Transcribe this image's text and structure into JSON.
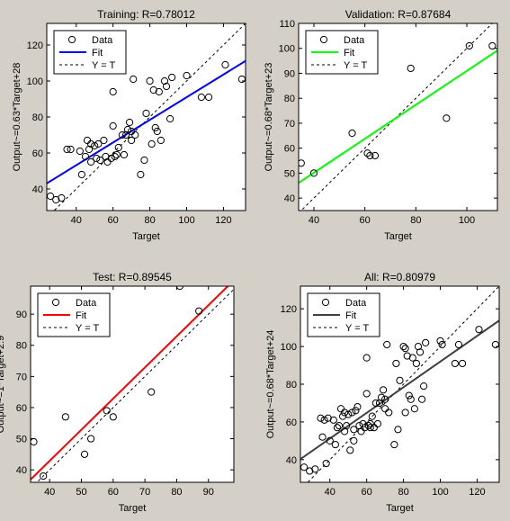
{
  "chart_data": [
    {
      "type": "scatter",
      "title": "Training: R=0.78012",
      "xlabel": "Target",
      "ylabel": "Output~=0.63*Target+28",
      "xlim": [
        24,
        132
      ],
      "ylim": [
        28,
        132
      ],
      "xticks": [
        40,
        60,
        80,
        100,
        120
      ],
      "yticks": [
        40,
        60,
        80,
        100,
        120
      ],
      "fit_color": "#0000ff",
      "legend": [
        "Data",
        "Fit",
        "Y = T"
      ],
      "fit": {
        "slope": 0.63,
        "intercept": 28
      },
      "points": [
        [
          26,
          36
        ],
        [
          29,
          34
        ],
        [
          32,
          35
        ],
        [
          35,
          62
        ],
        [
          37,
          62
        ],
        [
          42,
          61
        ],
        [
          43,
          48
        ],
        [
          45,
          58
        ],
        [
          46,
          67
        ],
        [
          47,
          62
        ],
        [
          48,
          65
        ],
        [
          48,
          55
        ],
        [
          50,
          64
        ],
        [
          51,
          57
        ],
        [
          52,
          65
        ],
        [
          53,
          56
        ],
        [
          55,
          67
        ],
        [
          56,
          58
        ],
        [
          57,
          55
        ],
        [
          59,
          57
        ],
        [
          60,
          94
        ],
        [
          60,
          75
        ],
        [
          61,
          58
        ],
        [
          62,
          59
        ],
        [
          63,
          63
        ],
        [
          65,
          70
        ],
        [
          66,
          59
        ],
        [
          67,
          70
        ],
        [
          68,
          73
        ],
        [
          69,
          77
        ],
        [
          70,
          67
        ],
        [
          70,
          72
        ],
        [
          71,
          101
        ],
        [
          72,
          70
        ],
        [
          75,
          48
        ],
        [
          77,
          56
        ],
        [
          78,
          82
        ],
        [
          80,
          100
        ],
        [
          81,
          65
        ],
        [
          82,
          95
        ],
        [
          83,
          74
        ],
        [
          84,
          72
        ],
        [
          85,
          94
        ],
        [
          86,
          67
        ],
        [
          88,
          100
        ],
        [
          89,
          97
        ],
        [
          91,
          79
        ],
        [
          92,
          102
        ],
        [
          100,
          103
        ],
        [
          108,
          91
        ],
        [
          112,
          91
        ],
        [
          121,
          109
        ],
        [
          130,
          101
        ]
      ]
    },
    {
      "type": "scatter",
      "title": "Validation: R=0.87684",
      "xlabel": "Target",
      "ylabel": "Output~=0.68*Target+23",
      "xlim": [
        34,
        112
      ],
      "ylim": [
        35,
        110
      ],
      "xticks": [
        40,
        60,
        80,
        100
      ],
      "yticks": [
        40,
        50,
        60,
        70,
        80,
        90,
        100,
        110
      ],
      "fit_color": "#00ff00",
      "legend": [
        "Data",
        "Fit",
        "Y = T"
      ],
      "fit": {
        "slope": 0.68,
        "intercept": 23
      },
      "points": [
        [
          35,
          54
        ],
        [
          40,
          50
        ],
        [
          55,
          66
        ],
        [
          61,
          58
        ],
        [
          62,
          57
        ],
        [
          64,
          57
        ],
        [
          78,
          92
        ],
        [
          92,
          72
        ],
        [
          101,
          101
        ],
        [
          110,
          101
        ]
      ]
    },
    {
      "type": "scatter",
      "title": "Test: R=0.89545",
      "xlabel": "Target",
      "ylabel": "Output~=1*Target+2.9",
      "xlim": [
        34,
        98
      ],
      "ylim": [
        36,
        99
      ],
      "xticks": [
        40,
        50,
        60,
        70,
        80,
        90
      ],
      "yticks": [
        40,
        50,
        60,
        70,
        80,
        90
      ],
      "fit_color": "#ff0000",
      "legend": [
        "Data",
        "Fit",
        "Y = T"
      ],
      "fit": {
        "slope": 1,
        "intercept": 2.9
      },
      "points": [
        [
          35,
          49
        ],
        [
          38,
          38
        ],
        [
          45,
          57
        ],
        [
          51,
          45
        ],
        [
          53,
          50
        ],
        [
          58,
          59
        ],
        [
          60,
          57
        ],
        [
          72,
          65
        ],
        [
          81,
          99
        ],
        [
          87,
          91
        ]
      ]
    },
    {
      "type": "scatter",
      "title": "All: R=0.80979",
      "xlabel": "Target",
      "ylabel": "Output~=0.68*Target+24",
      "xlim": [
        24,
        132
      ],
      "ylim": [
        28,
        132
      ],
      "xticks": [
        40,
        60,
        80,
        100,
        120
      ],
      "yticks": [
        40,
        60,
        80,
        100,
        120
      ],
      "fit_color": "#404040",
      "legend": [
        "Data",
        "Fit",
        "Y = T"
      ],
      "fit": {
        "slope": 0.68,
        "intercept": 24
      },
      "points": [
        [
          26,
          36
        ],
        [
          29,
          34
        ],
        [
          32,
          35
        ],
        [
          35,
          62
        ],
        [
          36,
          52
        ],
        [
          37,
          61
        ],
        [
          38,
          38
        ],
        [
          39,
          62
        ],
        [
          40,
          50
        ],
        [
          42,
          61
        ],
        [
          43,
          48
        ],
        [
          44,
          57
        ],
        [
          45,
          58
        ],
        [
          46,
          67
        ],
        [
          47,
          63
        ],
        [
          48,
          65
        ],
        [
          48,
          55
        ],
        [
          49,
          58
        ],
        [
          50,
          64
        ],
        [
          51,
          45
        ],
        [
          52,
          65
        ],
        [
          53,
          56
        ],
        [
          53,
          50
        ],
        [
          54,
          66
        ],
        [
          55,
          68
        ],
        [
          56,
          58
        ],
        [
          57,
          55
        ],
        [
          58,
          59
        ],
        [
          59,
          57
        ],
        [
          60,
          94
        ],
        [
          60,
          75
        ],
        [
          61,
          58
        ],
        [
          62,
          59
        ],
        [
          62,
          57
        ],
        [
          63,
          63
        ],
        [
          64,
          57
        ],
        [
          65,
          70
        ],
        [
          66,
          59
        ],
        [
          67,
          70
        ],
        [
          68,
          73
        ],
        [
          69,
          77
        ],
        [
          70,
          67
        ],
        [
          70,
          72
        ],
        [
          71,
          101
        ],
        [
          72,
          65
        ],
        [
          75,
          48
        ],
        [
          76,
          91
        ],
        [
          77,
          56
        ],
        [
          78,
          82
        ],
        [
          80,
          100
        ],
        [
          81,
          65
        ],
        [
          81,
          99
        ],
        [
          82,
          95
        ],
        [
          83,
          74
        ],
        [
          84,
          72
        ],
        [
          85,
          94
        ],
        [
          86,
          67
        ],
        [
          87,
          91
        ],
        [
          88,
          100
        ],
        [
          89,
          97
        ],
        [
          90,
          72
        ],
        [
          91,
          79
        ],
        [
          92,
          102
        ],
        [
          100,
          103
        ],
        [
          101,
          101
        ],
        [
          108,
          91
        ],
        [
          110,
          101
        ],
        [
          112,
          91
        ],
        [
          121,
          109
        ],
        [
          130,
          101
        ]
      ]
    }
  ]
}
